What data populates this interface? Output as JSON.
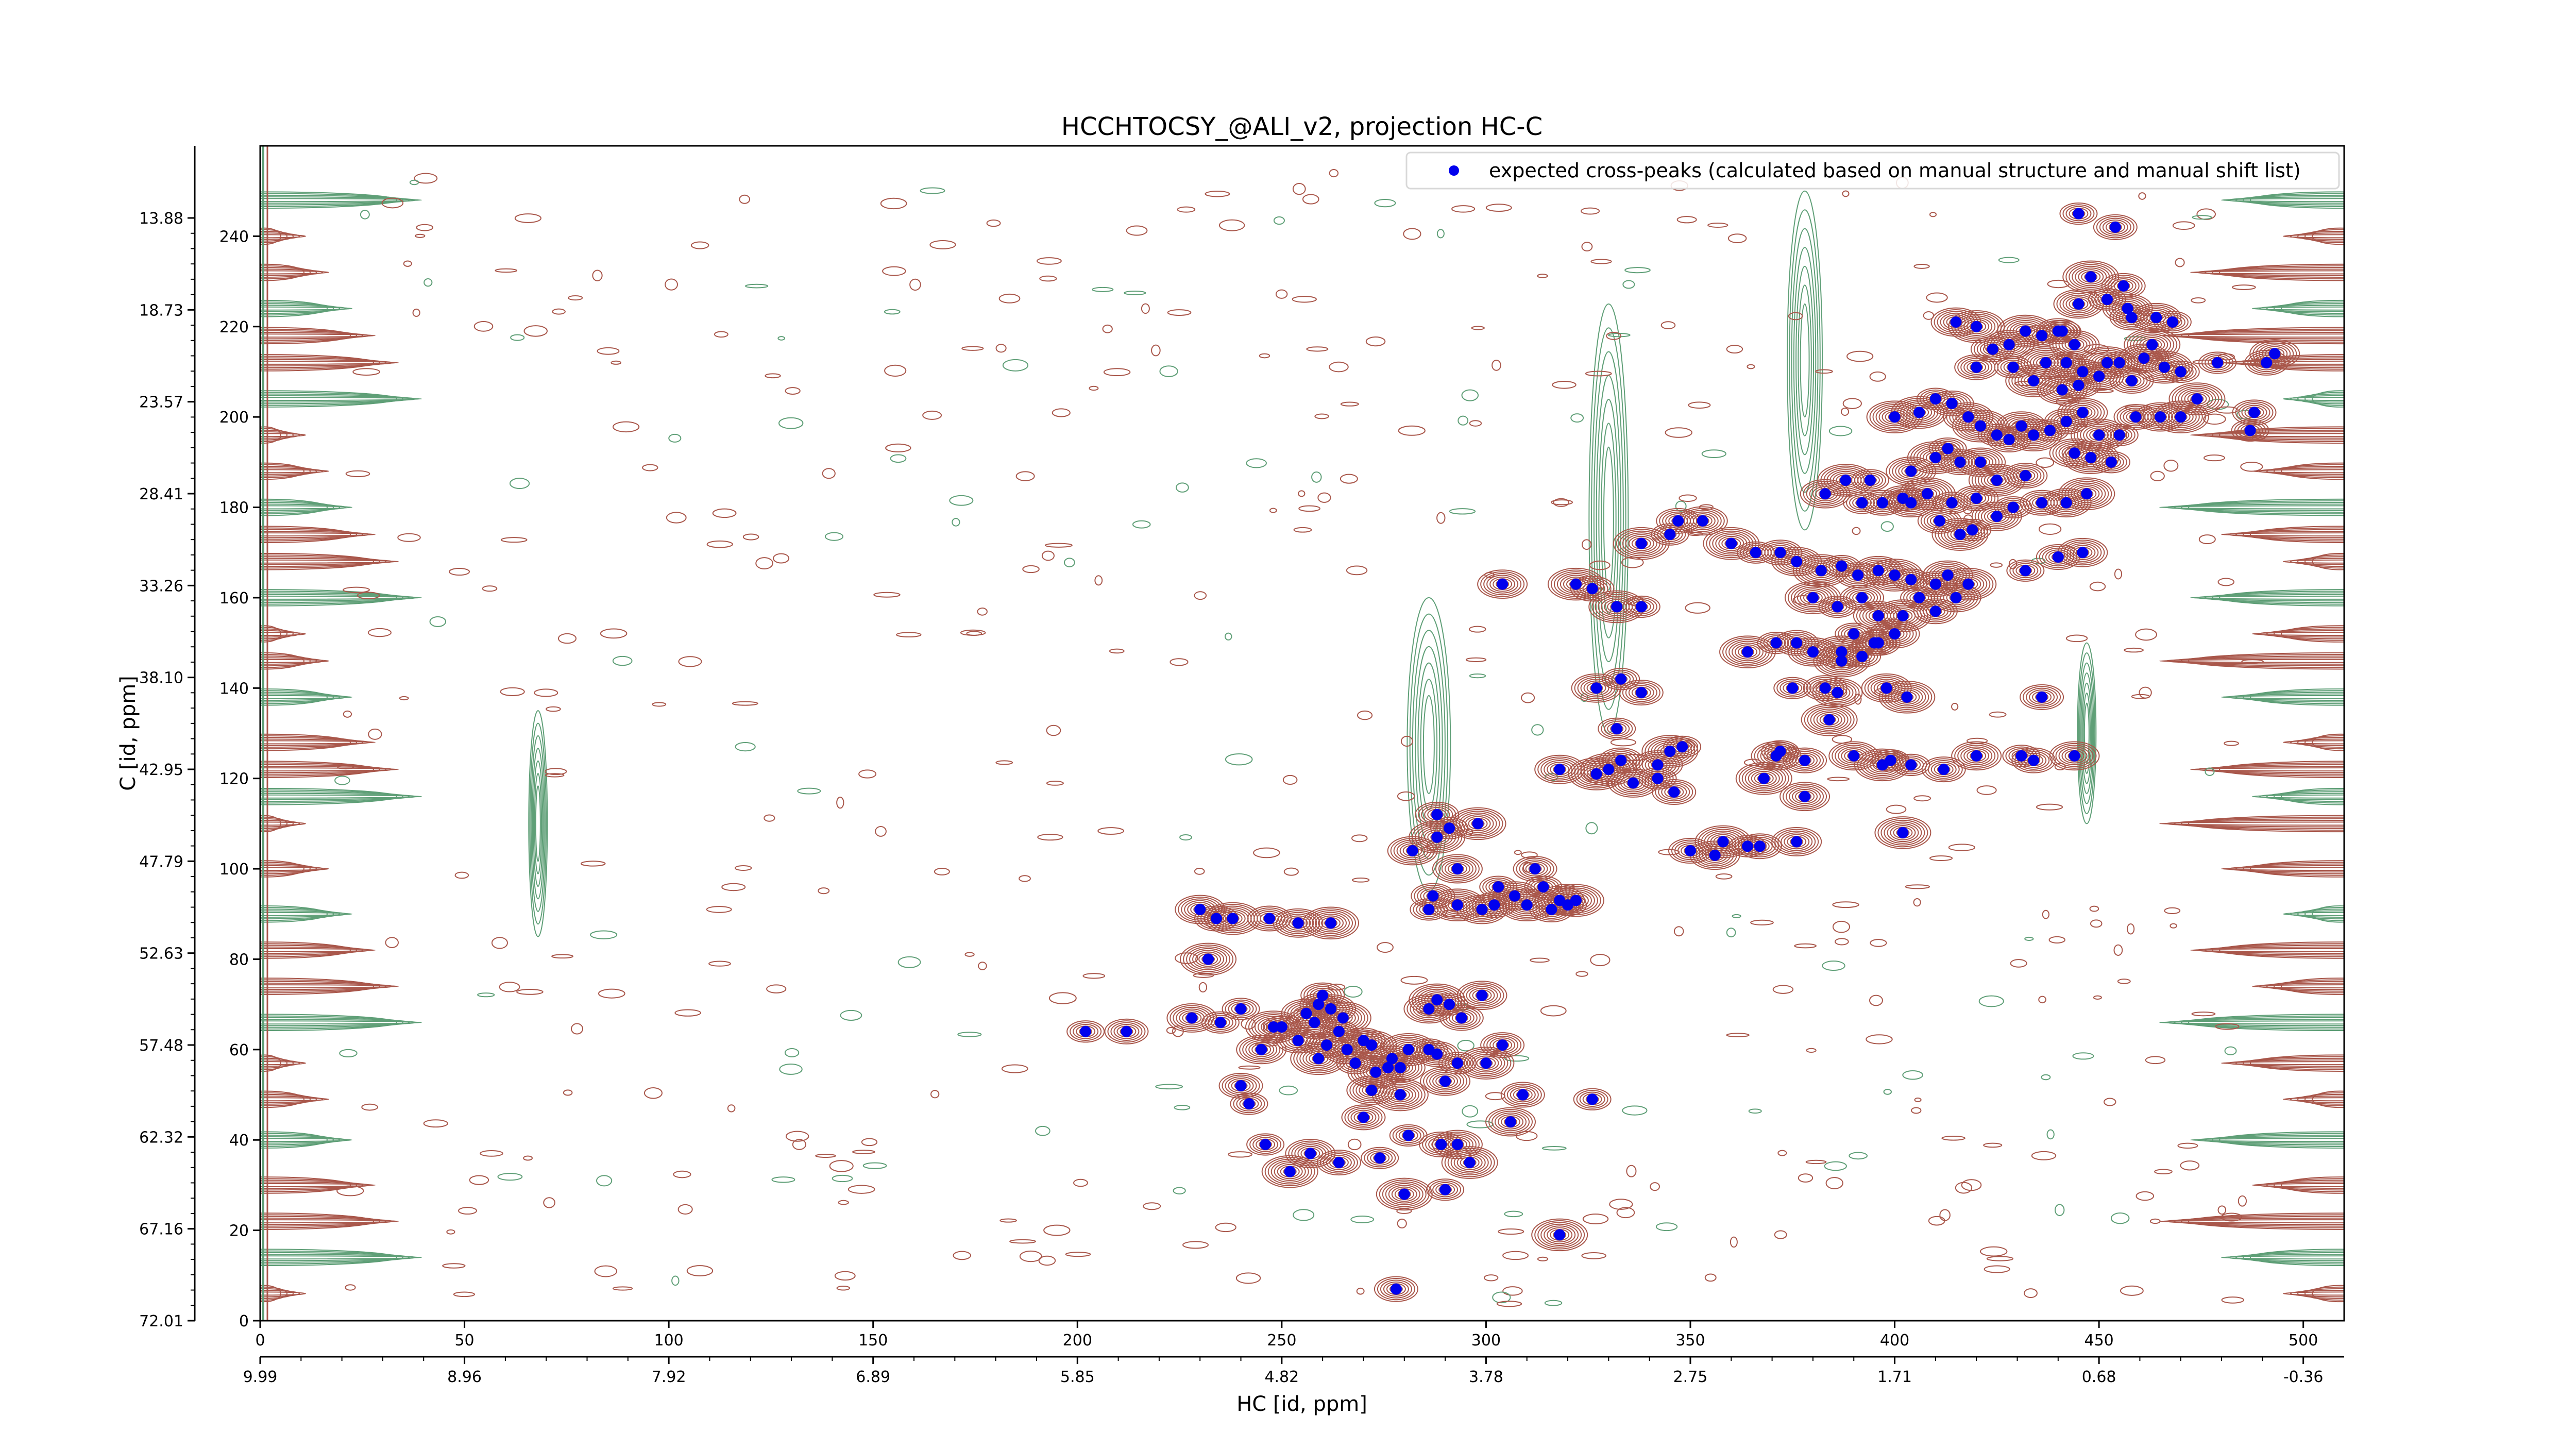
{
  "chart_data": {
    "type": "scatter",
    "title": "HCCHTOCSY_@ALI_v2, projection HC-C",
    "xlabel": "HC [id, ppm]",
    "ylabel": "C [id, ppm]",
    "x_index_range": [
      0,
      510
    ],
    "y_index_range": [
      0,
      260
    ],
    "x_index_ticks": [
      "0",
      "50",
      "100",
      "150",
      "200",
      "250",
      "300",
      "350",
      "400",
      "450",
      "500"
    ],
    "y_index_ticks": [
      "0",
      "20",
      "40",
      "60",
      "80",
      "100",
      "120",
      "140",
      "160",
      "180",
      "200",
      "220",
      "240"
    ],
    "x_ppm_ticks": [
      "9.99",
      "8.96",
      "7.92",
      "6.89",
      "5.85",
      "4.82",
      "3.78",
      "2.75",
      "1.71",
      "0.68",
      "-0.36"
    ],
    "y_ppm_ticks": [
      "72.01",
      "67.16",
      "62.32",
      "57.48",
      "52.63",
      "47.79",
      "42.95",
      "38.10",
      "33.26",
      "28.41",
      "23.57",
      "18.73",
      "13.88"
    ],
    "legend": {
      "position": "top-right",
      "label": "expected cross-peaks (calculated based on manual structure and manual shift list)"
    },
    "colors": {
      "positive_contours": "#a9574b",
      "negative_contours": "#5f9f77",
      "markers": "#0000ee",
      "axes": "#000000"
    },
    "series": [
      {
        "name": "expected cross-peaks (calculated based on manual structure and manual shift list)",
        "points": [
          [
            202,
            64
          ],
          [
            212,
            64
          ],
          [
            228,
            67
          ],
          [
            232,
            80
          ],
          [
            235,
            66
          ],
          [
            234,
            89
          ],
          [
            230,
            91
          ],
          [
            238,
            89
          ],
          [
            240,
            69
          ],
          [
            247,
            89
          ],
          [
            254,
            88
          ],
          [
            262,
            88
          ],
          [
            250,
            65
          ],
          [
            254,
            62
          ],
          [
            256,
            68
          ],
          [
            258,
            66
          ],
          [
            259,
            70
          ],
          [
            260,
            72
          ],
          [
            262,
            69
          ],
          [
            265,
            67
          ],
          [
            264,
            64
          ],
          [
            261,
            61
          ],
          [
            266,
            60
          ],
          [
            259,
            58
          ],
          [
            268,
            57
          ],
          [
            270,
            62
          ],
          [
            272,
            61
          ],
          [
            273,
            55
          ],
          [
            276,
            56
          ],
          [
            277,
            58
          ],
          [
            279,
            56
          ],
          [
            281,
            60
          ],
          [
            286,
            60
          ],
          [
            288,
            59
          ],
          [
            286,
            69
          ],
          [
            288,
            71
          ],
          [
            291,
            70
          ],
          [
            294,
            67
          ],
          [
            299,
            72
          ],
          [
            300,
            57
          ],
          [
            293,
            57
          ],
          [
            304,
            61
          ],
          [
            290,
            53
          ],
          [
            279,
            50
          ],
          [
            281,
            41
          ],
          [
            289,
            39
          ],
          [
            293,
            39
          ],
          [
            296,
            35
          ],
          [
            274,
            36
          ],
          [
            264,
            35
          ],
          [
            257,
            37
          ],
          [
            252,
            33
          ],
          [
            246,
            39
          ],
          [
            240,
            52
          ],
          [
            245,
            60
          ],
          [
            248,
            65
          ],
          [
            242,
            48
          ],
          [
            270,
            45
          ],
          [
            272,
            51
          ],
          [
            280,
            28
          ],
          [
            290,
            29
          ],
          [
            309,
            50
          ],
          [
            306,
            44
          ],
          [
            318,
            19
          ],
          [
            326,
            49
          ],
          [
            278,
            7
          ],
          [
            282,
            104
          ],
          [
            288,
            107
          ],
          [
            291,
            109
          ],
          [
            288,
            112
          ],
          [
            293,
            100
          ],
          [
            298,
            110
          ],
          [
            303,
            96
          ],
          [
            302,
            92
          ],
          [
            307,
            94
          ],
          [
            310,
            92
          ],
          [
            314,
            96
          ],
          [
            316,
            91
          ],
          [
            318,
            93
          ],
          [
            322,
            93
          ],
          [
            320,
            92
          ],
          [
            312,
            100
          ],
          [
            299,
            91
          ],
          [
            293,
            92
          ],
          [
            286,
            91
          ],
          [
            287,
            94
          ],
          [
            318,
            122
          ],
          [
            327,
            121
          ],
          [
            332,
            131
          ],
          [
            333,
            124
          ],
          [
            342,
            123
          ],
          [
            345,
            126
          ],
          [
            342,
            120
          ],
          [
            346,
            117
          ],
          [
            336,
            119
          ],
          [
            330,
            122
          ],
          [
            333,
            142
          ],
          [
            338,
            139
          ],
          [
            327,
            140
          ],
          [
            332,
            158
          ],
          [
            338,
            158
          ],
          [
            326,
            162
          ],
          [
            304,
            163
          ],
          [
            322,
            163
          ],
          [
            348,
            127
          ],
          [
            350,
            104
          ],
          [
            356,
            103
          ],
          [
            358,
            106
          ],
          [
            364,
            105
          ],
          [
            367,
            105
          ],
          [
            376,
            106
          ],
          [
            368,
            120
          ],
          [
            372,
            126
          ],
          [
            378,
            124
          ],
          [
            390,
            125
          ],
          [
            397,
            123
          ],
          [
            404,
            123
          ],
          [
            412,
            122
          ],
          [
            420,
            125
          ],
          [
            402,
            108
          ],
          [
            431,
            125
          ],
          [
            434,
            124
          ],
          [
            444,
            125
          ],
          [
            338,
            172
          ],
          [
            345,
            174
          ],
          [
            347,
            177
          ],
          [
            353,
            177
          ],
          [
            360,
            172
          ],
          [
            366,
            170
          ],
          [
            372,
            170
          ],
          [
            376,
            168
          ],
          [
            382,
            166
          ],
          [
            387,
            167
          ],
          [
            391,
            165
          ],
          [
            396,
            166
          ],
          [
            400,
            165
          ],
          [
            404,
            164
          ],
          [
            410,
            163
          ],
          [
            413,
            165
          ],
          [
            380,
            160
          ],
          [
            386,
            158
          ],
          [
            392,
            160
          ],
          [
            396,
            156
          ],
          [
            402,
            156
          ],
          [
            406,
            160
          ],
          [
            410,
            157
          ],
          [
            415,
            160
          ],
          [
            418,
            163
          ],
          [
            390,
            152
          ],
          [
            395,
            150
          ],
          [
            400,
            152
          ],
          [
            364,
            148
          ],
          [
            371,
            150
          ],
          [
            376,
            150
          ],
          [
            380,
            148
          ],
          [
            387,
            148
          ],
          [
            392,
            147
          ],
          [
            396,
            150
          ],
          [
            398,
            140
          ],
          [
            403,
            138
          ],
          [
            375,
            140
          ],
          [
            383,
            140
          ],
          [
            386,
            139
          ],
          [
            387,
            146
          ],
          [
            392,
            181
          ],
          [
            397,
            181
          ],
          [
            404,
            181
          ],
          [
            408,
            183
          ],
          [
            414,
            181
          ],
          [
            420,
            182
          ],
          [
            425,
            178
          ],
          [
            416,
            174
          ],
          [
            419,
            175
          ],
          [
            411,
            177
          ],
          [
            383,
            183
          ],
          [
            388,
            186
          ],
          [
            394,
            186
          ],
          [
            402,
            182
          ],
          [
            404,
            188
          ],
          [
            410,
            191
          ],
          [
            413,
            193
          ],
          [
            416,
            190
          ],
          [
            421,
            190
          ],
          [
            425,
            186
          ],
          [
            429,
            180
          ],
          [
            436,
            181
          ],
          [
            442,
            181
          ],
          [
            447,
            183
          ],
          [
            432,
            166
          ],
          [
            440,
            169
          ],
          [
            446,
            170
          ],
          [
            406,
            201
          ],
          [
            410,
            204
          ],
          [
            414,
            203
          ],
          [
            418,
            200
          ],
          [
            421,
            198
          ],
          [
            425,
            196
          ],
          [
            428,
            195
          ],
          [
            431,
            198
          ],
          [
            434,
            196
          ],
          [
            438,
            197
          ],
          [
            442,
            199
          ],
          [
            446,
            201
          ],
          [
            450,
            196
          ],
          [
            455,
            196
          ],
          [
            459,
            200
          ],
          [
            444,
            192
          ],
          [
            448,
            191
          ],
          [
            453,
            190
          ],
          [
            424,
            215
          ],
          [
            428,
            216
          ],
          [
            432,
            219
          ],
          [
            436,
            218
          ],
          [
            440,
            219
          ],
          [
            444,
            216
          ],
          [
            437,
            212
          ],
          [
            442,
            212
          ],
          [
            446,
            210
          ],
          [
            450,
            209
          ],
          [
            452,
            212
          ],
          [
            455,
            212
          ],
          [
            458,
            208
          ],
          [
            461,
            213
          ],
          [
            466,
            211
          ],
          [
            470,
            210
          ],
          [
            445,
            207
          ],
          [
            441,
            206
          ],
          [
            434,
            208
          ],
          [
            429,
            211
          ],
          [
            420,
            211
          ],
          [
            415,
            221
          ],
          [
            420,
            220
          ],
          [
            441,
            219
          ],
          [
            458,
            222
          ],
          [
            464,
            222
          ],
          [
            474,
            204
          ],
          [
            487,
            197
          ],
          [
            488,
            201
          ],
          [
            445,
            225
          ],
          [
            448,
            231
          ],
          [
            452,
            226
          ],
          [
            456,
            229
          ],
          [
            457,
            224
          ],
          [
            463,
            216
          ],
          [
            468,
            221
          ],
          [
            432,
            187
          ],
          [
            465,
            200
          ],
          [
            470,
            200
          ],
          [
            479,
            212
          ],
          [
            491,
            212
          ],
          [
            493,
            214
          ],
          [
            400,
            200
          ],
          [
            445,
            245
          ],
          [
            454,
            242
          ],
          [
            371,
            125
          ],
          [
            384,
            133
          ],
          [
            399,
            124
          ],
          [
            436,
            138
          ],
          [
            378,
            116
          ]
        ]
      }
    ]
  }
}
